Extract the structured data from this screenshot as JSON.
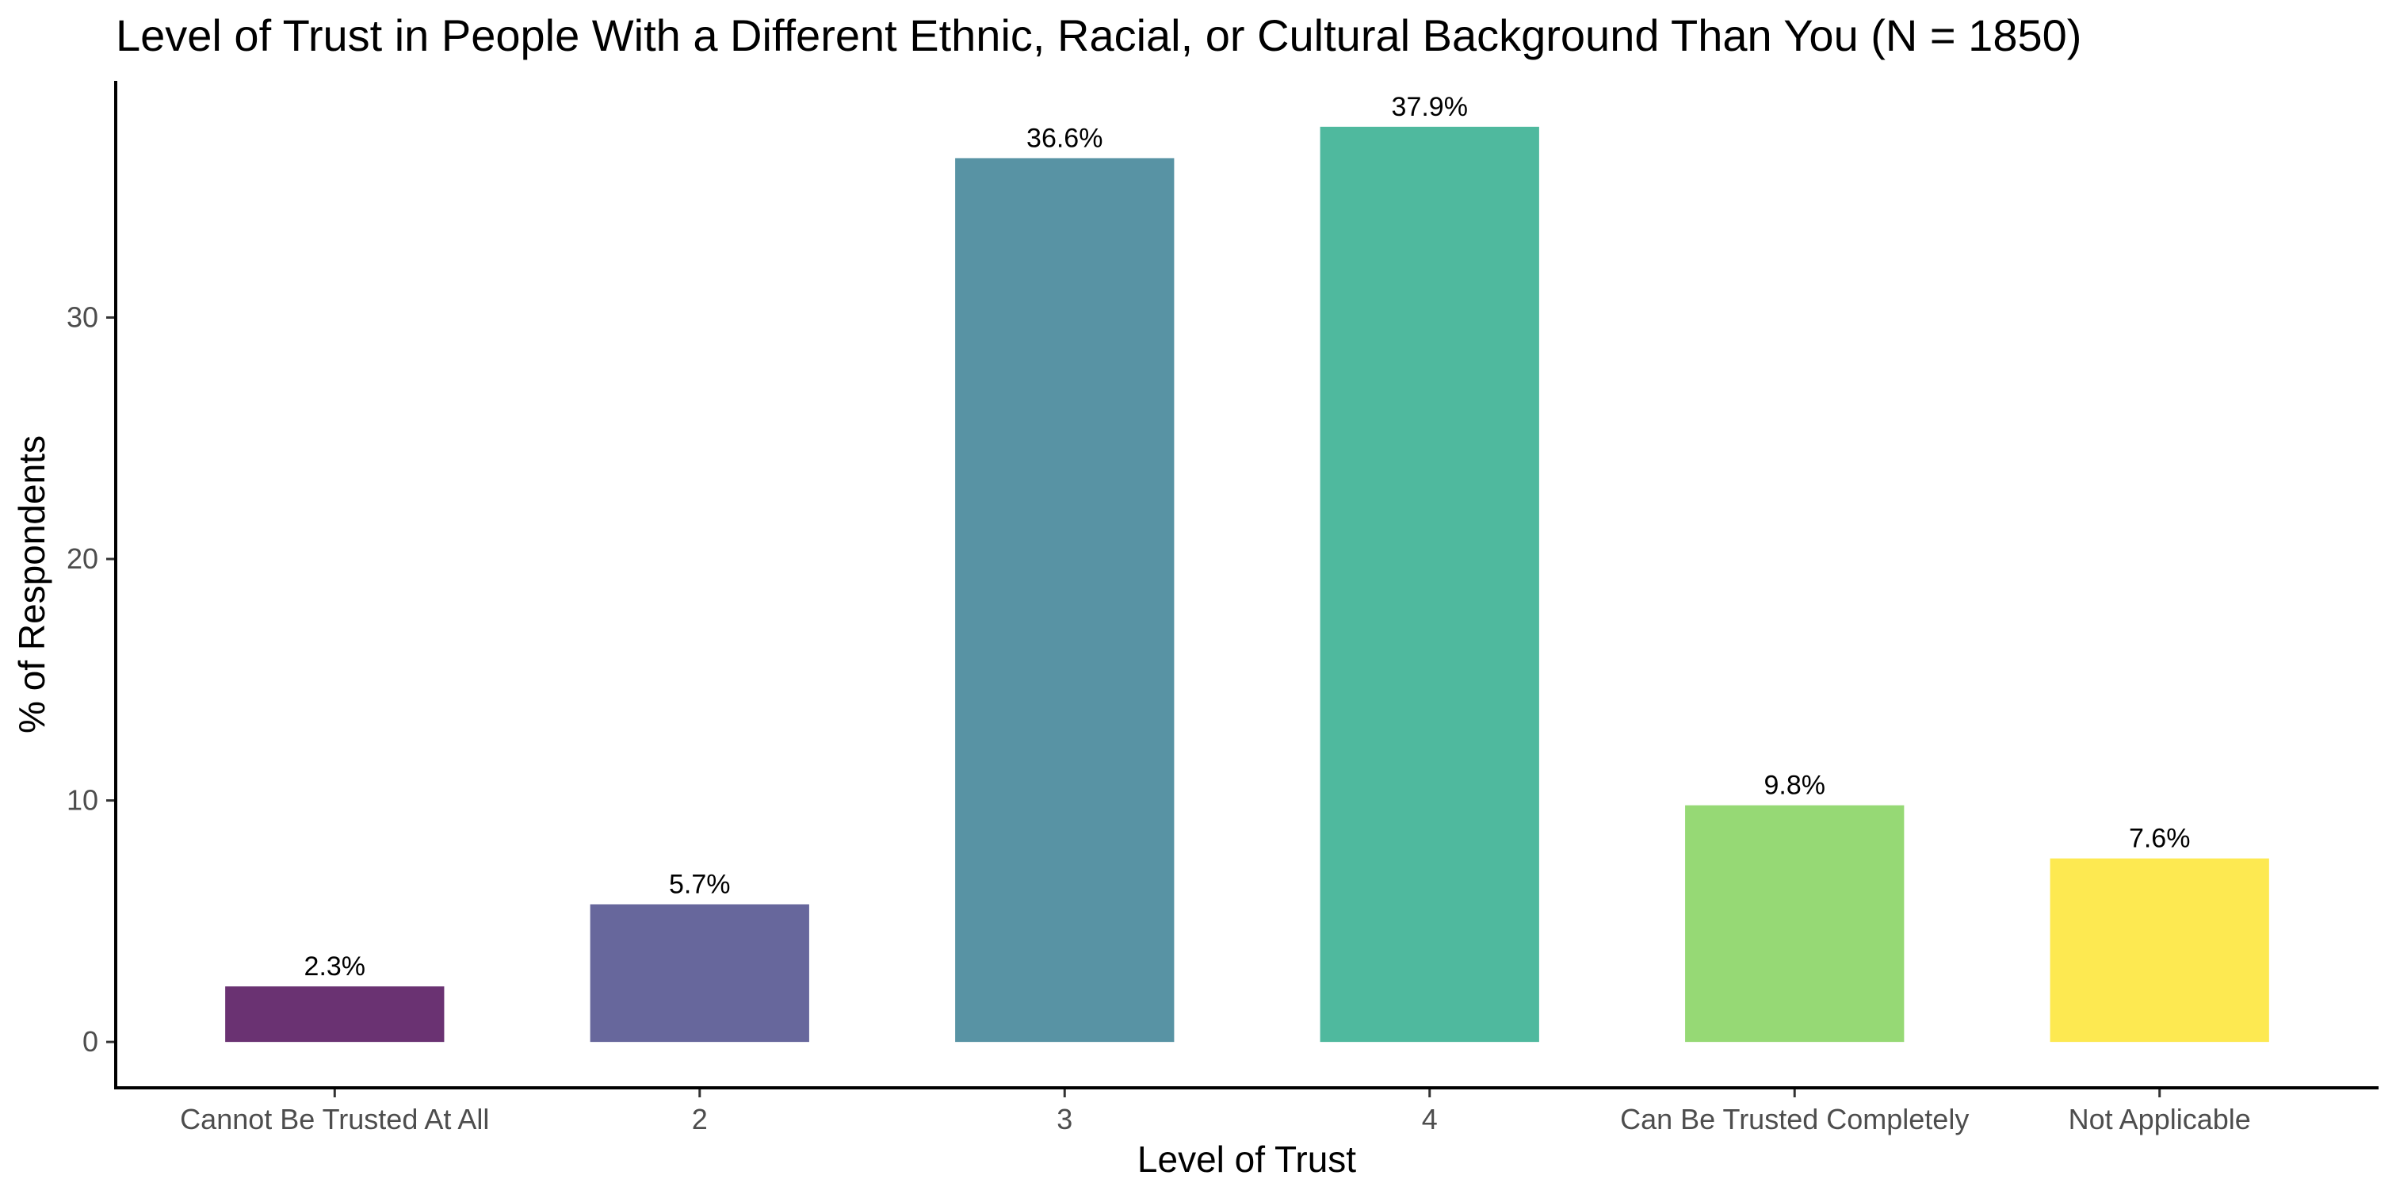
{
  "chart_data": {
    "type": "bar",
    "title": "Level of Trust in People With a Different Ethnic, Racial, or Cultural Background Than You (N = 1850)",
    "xlabel": "Level of Trust",
    "ylabel": "% of Respondents",
    "categories": [
      "Cannot Be Trusted At All",
      "2",
      "3",
      "4",
      "Can Be Trusted Completely",
      "Not Applicable"
    ],
    "values": [
      2.3,
      5.7,
      36.6,
      37.9,
      9.8,
      7.6
    ],
    "data_labels": [
      "2.3%",
      "5.7%",
      "36.6%",
      "37.9%",
      "9.8%",
      "7.6%"
    ],
    "colors": [
      "#6a3272",
      "#67679c",
      "#5893a4",
      "#4fb99e",
      "#96d975",
      "#fde951"
    ],
    "ylim": [
      -1.9,
      39.8
    ],
    "yticks": [
      0,
      10,
      20,
      30
    ],
    "ytick_labels": [
      "0",
      "10",
      "20",
      "30"
    ],
    "grid": false,
    "legend": "none"
  }
}
